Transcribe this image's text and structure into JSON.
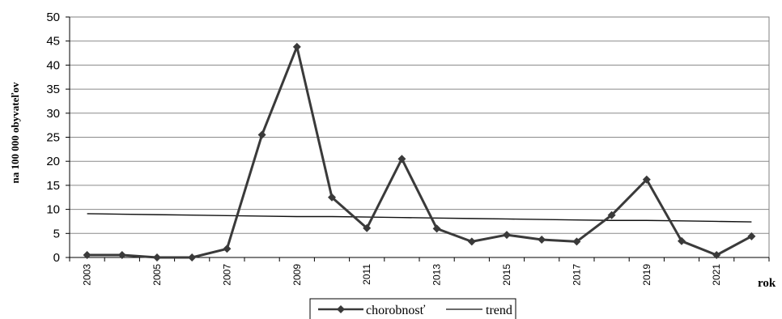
{
  "chart_data": {
    "type": "line",
    "title": "",
    "xlabel": "rok",
    "ylabel": "na 100 000 obyvateľov",
    "ylim": [
      0,
      50
    ],
    "yticks": [
      0,
      5,
      10,
      15,
      20,
      25,
      30,
      35,
      40,
      45,
      50
    ],
    "x": [
      2003,
      2004,
      2005,
      2006,
      2007,
      2008,
      2009,
      2010,
      2011,
      2012,
      2013,
      2014,
      2015,
      2016,
      2017,
      2018,
      2019,
      2020,
      2021,
      2022
    ],
    "xtick_labels": [
      "2003",
      "2005",
      "2007",
      "2009",
      "2011",
      "2013",
      "2015",
      "2017",
      "2019",
      "2021"
    ],
    "grid": true,
    "legend_position": "bottom",
    "series": [
      {
        "name": "chorobnosť",
        "marker": "diamond",
        "color": "#3a3a3a",
        "values": [
          0.5,
          0.5,
          0,
          0,
          1.8,
          25.5,
          43.8,
          12.5,
          6.1,
          20.5,
          6.0,
          3.3,
          4.7,
          3.7,
          3.3,
          8.8,
          16.2,
          3.4,
          0.5,
          4.4
        ]
      },
      {
        "name": "trend",
        "marker": "none",
        "color": "#111111",
        "values": [
          9.1,
          9.0,
          8.9,
          8.8,
          8.7,
          8.6,
          8.5,
          8.5,
          8.4,
          8.3,
          8.2,
          8.1,
          8.0,
          7.9,
          7.8,
          7.7,
          7.7,
          7.6,
          7.5,
          7.4
        ]
      }
    ]
  }
}
